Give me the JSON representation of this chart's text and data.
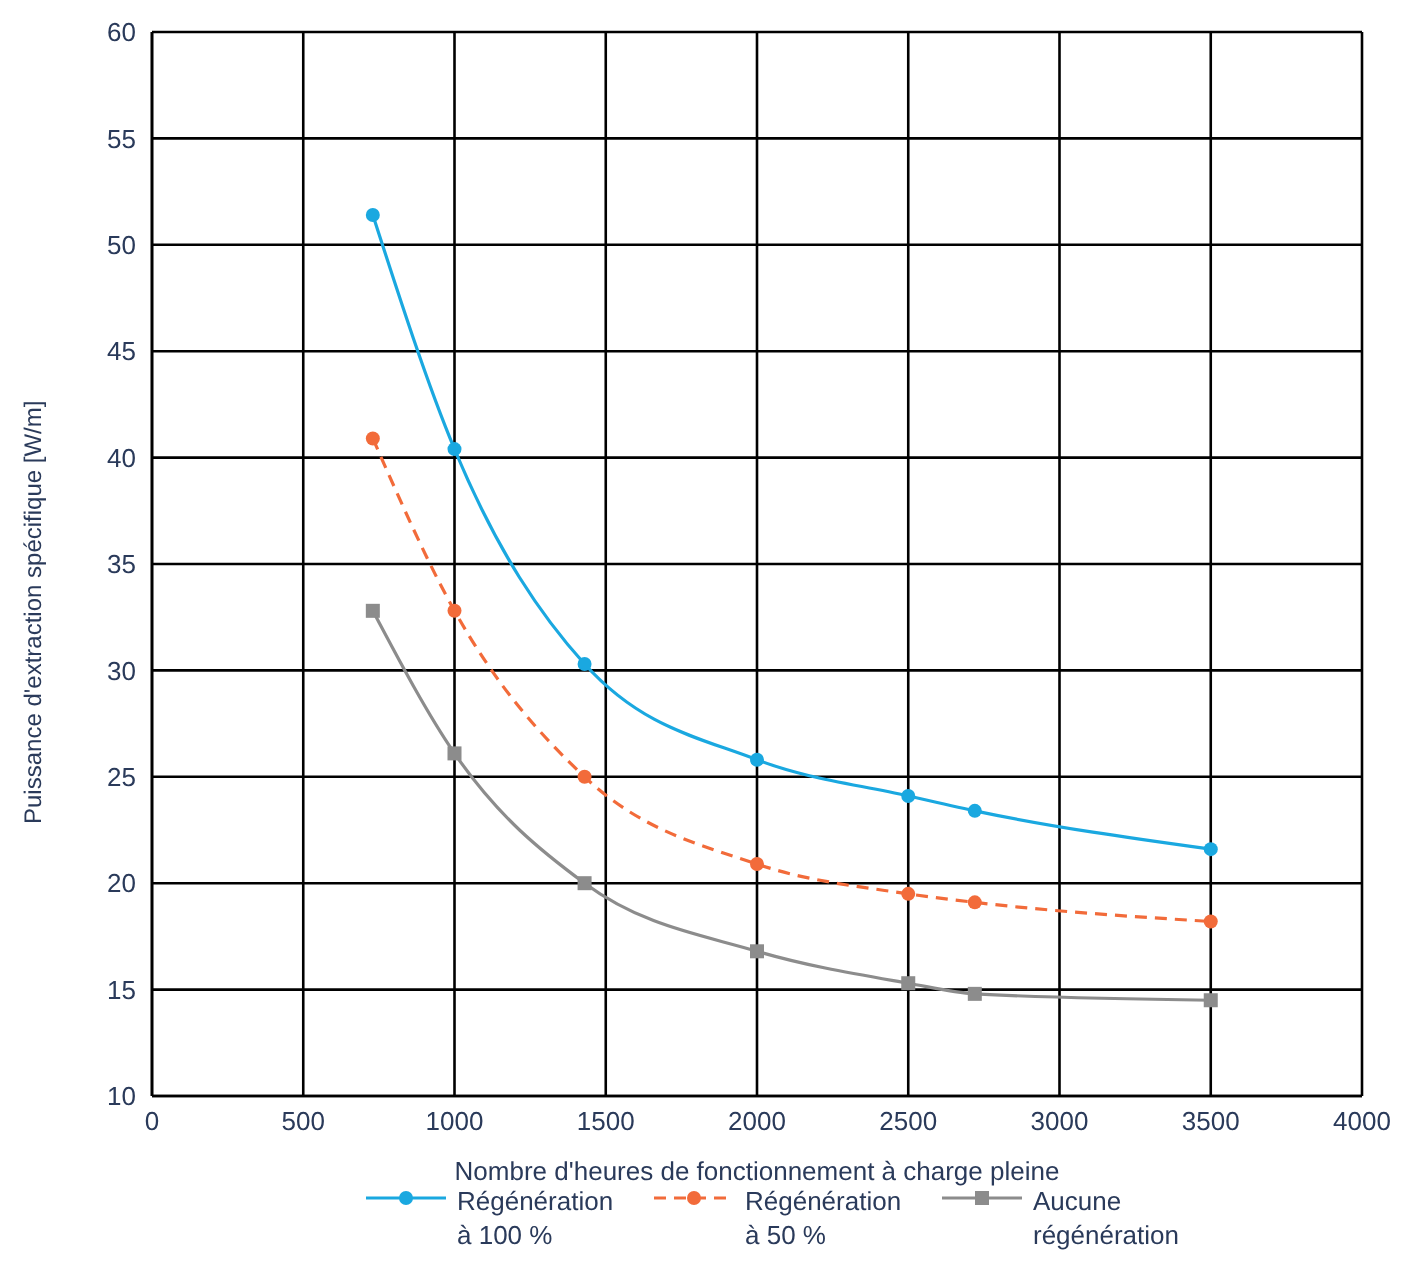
{
  "chart_data": {
    "type": "line",
    "xlabel": "Nombre d'heures de fonctionnement à charge pleine",
    "ylabel": "Puissance d'extraction spécifique [W/m]",
    "xlim": [
      0,
      4000
    ],
    "xticks": [
      0,
      500,
      1000,
      1500,
      2000,
      2500,
      3000,
      3500,
      4000
    ],
    "ylim": [
      10,
      60
    ],
    "yticks": [
      10,
      15,
      20,
      25,
      30,
      35,
      40,
      45,
      50,
      55,
      60
    ],
    "grid": true,
    "legend": "bottom",
    "series": [
      {
        "name": "Régénération à 100 %",
        "color": "#1aa8e0",
        "marker": "circle",
        "line_style": "solid",
        "x": [
          730,
          1000,
          1430,
          2000,
          2500,
          2720,
          3500
        ],
        "values": [
          51.4,
          40.4,
          30.3,
          25.8,
          24.1,
          23.4,
          21.6
        ]
      },
      {
        "name": "Régénération à 50 %",
        "color": "#f26b3a",
        "marker": "circle",
        "line_style": "dashed",
        "x": [
          730,
          1000,
          1430,
          2000,
          2500,
          2720,
          3500
        ],
        "values": [
          40.9,
          32.8,
          25.0,
          20.9,
          19.5,
          19.1,
          18.2
        ]
      },
      {
        "name": "Aucune régénération",
        "color": "#8c8c8c",
        "marker": "square",
        "line_style": "solid",
        "x": [
          730,
          1000,
          1430,
          2000,
          2500,
          2720,
          3500
        ],
        "values": [
          32.8,
          26.1,
          20.0,
          16.8,
          15.3,
          14.8,
          14.5
        ]
      }
    ]
  }
}
